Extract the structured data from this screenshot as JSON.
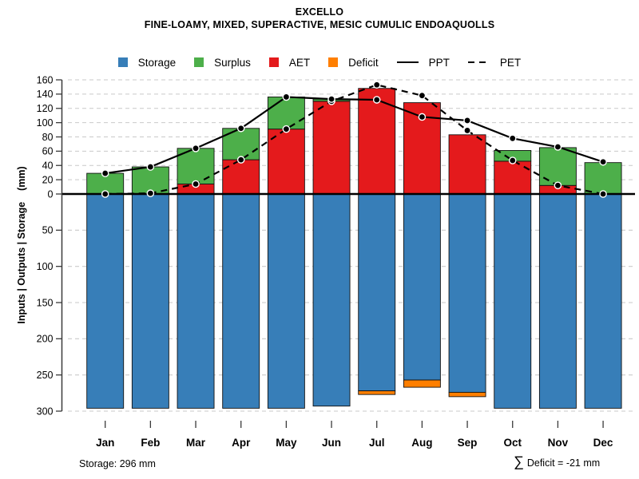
{
  "title": "EXCELLO",
  "subtitle": "FINE-LOAMY, MIXED, SUPERACTIVE, MESIC CUMULIC ENDOAQUOLLS",
  "colors": {
    "storage": "#377EB8",
    "surplus": "#4DAF4A",
    "aet": "#E41A1C",
    "deficit": "#FF7F00",
    "line": "#000000",
    "grid": "#C9C9C9",
    "axis": "#3A3A3A"
  },
  "legend": {
    "items": [
      {
        "label": "Storage",
        "swatch": "box",
        "color_key": "storage"
      },
      {
        "label": "Surplus",
        "swatch": "box",
        "color_key": "surplus"
      },
      {
        "label": "AET",
        "swatch": "box",
        "color_key": "aet"
      },
      {
        "label": "Deficit",
        "swatch": "box",
        "color_key": "deficit"
      },
      {
        "label": "PPT",
        "swatch": "line-solid",
        "color_key": "line"
      },
      {
        "label": "PET",
        "swatch": "line-dashed",
        "color_key": "line"
      }
    ]
  },
  "y_axis": {
    "label": "Inputs | Outputs | Storage    (mm)"
  },
  "chart_data": {
    "type": "bar",
    "subtype": "monthly water balance: stacked bars above zero (AET+Surplus), mirrored storage bars below zero (Storage+Deficit), with PPT (solid) and PET (dashed) point-lines",
    "title": "EXCELLO",
    "subtitle": "FINE-LOAMY, MIXED, SUPERACTIVE, MESIC CUMULIC ENDOAQUOLLS",
    "categories": [
      "Jan",
      "Feb",
      "Mar",
      "Apr",
      "May",
      "Jun",
      "Jul",
      "Aug",
      "Sep",
      "Oct",
      "Nov",
      "Dec"
    ],
    "series": [
      {
        "name": "AET",
        "role": "bar-upper",
        "color_key": "aet",
        "values": [
          0,
          0,
          14,
          48,
          91,
          130,
          148,
          128,
          83,
          46,
          12,
          0
        ]
      },
      {
        "name": "Surplus",
        "role": "bar-upper-stacked",
        "color_key": "surplus",
        "values": [
          29,
          38,
          50,
          44,
          45,
          3,
          0,
          0,
          0,
          15,
          53,
          44
        ]
      },
      {
        "name": "Storage",
        "role": "bar-lower",
        "color_key": "storage",
        "values": [
          296,
          296,
          296,
          296,
          296,
          293,
          272,
          257,
          274,
          296,
          296,
          296
        ]
      },
      {
        "name": "Deficit",
        "role": "bar-lower-stacked",
        "color_key": "deficit",
        "values": [
          0,
          0,
          0,
          0,
          0,
          0,
          5,
          10,
          6,
          0,
          0,
          0
        ]
      },
      {
        "name": "PPT",
        "role": "line-solid",
        "color_key": "line",
        "values": [
          29,
          38,
          64,
          92,
          136,
          133,
          132,
          108,
          103,
          78,
          66,
          45
        ]
      },
      {
        "name": "PET",
        "role": "line-dashed",
        "color_key": "line",
        "values": [
          0,
          1,
          14,
          48,
          91,
          130,
          153,
          138,
          89,
          47,
          12,
          0
        ]
      }
    ],
    "upper_axis": {
      "label_units": "mm",
      "range": [
        0,
        160
      ],
      "ticks": [
        160,
        140,
        120,
        100,
        80,
        60,
        40,
        20,
        0
      ]
    },
    "lower_axis": {
      "label_units": "mm",
      "range": [
        0,
        300
      ],
      "ticks": [
        50,
        100,
        150,
        200,
        250,
        300
      ]
    },
    "ylabel": "Inputs | Outputs | Storage    (mm)",
    "grid": "dashed horizontal",
    "legend_position": "top"
  },
  "footer": {
    "storage_note": "Storage: 296 mm",
    "deficit_sigma": "∑",
    "deficit_text": "Deficit = -21 mm"
  }
}
